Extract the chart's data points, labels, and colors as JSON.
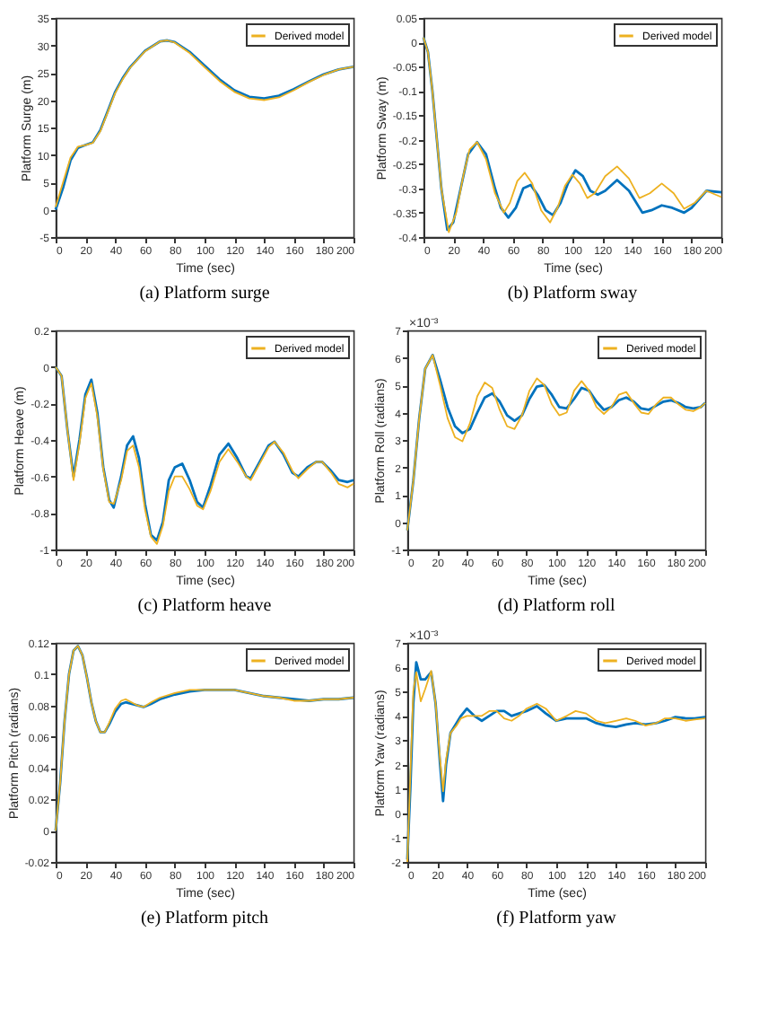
{
  "chart_data": [
    {
      "type": "line",
      "title": "(a) Platform surge",
      "xlabel": "Time (sec)",
      "ylabel": "Platform Surge (m)",
      "xlim": [
        0,
        200
      ],
      "xticks": [
        0,
        20,
        40,
        60,
        80,
        100,
        120,
        140,
        160,
        180,
        200
      ],
      "ylim": [
        -5,
        35
      ],
      "yticks": [
        -5,
        0,
        5,
        10,
        15,
        20,
        25,
        30,
        35
      ],
      "grid": false,
      "legend": "top right",
      "series": [
        {
          "color": "#0072bd",
          "x": [
            0,
            5,
            10,
            15,
            20,
            25,
            30,
            35,
            40,
            45,
            50,
            60,
            70,
            75,
            80,
            90,
            100,
            110,
            120,
            130,
            140,
            150,
            160,
            170,
            180,
            190,
            200
          ],
          "values": [
            0,
            4,
            9,
            11.3,
            11.8,
            12.3,
            14.5,
            18,
            21.5,
            24,
            26,
            29,
            30.7,
            30.9,
            30.6,
            28.8,
            26.3,
            23.8,
            21.8,
            20.6,
            20.3,
            20.8,
            22,
            23.4,
            24.7,
            25.6,
            26.1
          ]
        },
        {
          "name": "Derived model",
          "color": "#edb120",
          "x": [
            0,
            5,
            10,
            15,
            20,
            25,
            30,
            35,
            40,
            45,
            50,
            60,
            70,
            75,
            80,
            90,
            100,
            110,
            120,
            130,
            140,
            150,
            160,
            170,
            180,
            190,
            200
          ],
          "values": [
            0.5,
            5,
            9.5,
            11.5,
            11.8,
            12.2,
            14.3,
            17.8,
            21.3,
            23.8,
            25.9,
            28.9,
            30.7,
            30.9,
            30.5,
            28.6,
            26,
            23.5,
            21.5,
            20.3,
            20,
            20.5,
            21.8,
            23.3,
            24.6,
            25.6,
            26.1
          ]
        }
      ]
    },
    {
      "type": "line",
      "title": "(b) Platform sway",
      "xlabel": "Time (sec)",
      "ylabel": "Platform Sway (m)",
      "xlim": [
        0,
        200
      ],
      "xticks": [
        0,
        20,
        40,
        60,
        80,
        100,
        120,
        140,
        160,
        180,
        200
      ],
      "ylim": [
        -0.4,
        0.05
      ],
      "yticks": [
        -0.4,
        -0.35,
        -0.3,
        -0.25,
        -0.2,
        -0.15,
        -0.1,
        -0.05,
        0,
        0.05
      ],
      "grid": false,
      "legend": "top right",
      "series": [
        {
          "color": "#0072bd",
          "x": [
            0,
            3,
            6,
            9,
            12,
            16,
            20,
            25,
            30,
            36,
            42,
            48,
            52,
            57,
            62,
            67,
            72,
            77,
            82,
            87,
            92,
            97,
            102,
            107,
            112,
            117,
            122,
            130,
            138,
            147,
            153,
            160,
            167,
            175,
            180,
            190,
            200
          ],
          "values": [
            0.01,
            -0.02,
            -0.1,
            -0.2,
            -0.3,
            -0.385,
            -0.37,
            -0.3,
            -0.23,
            -0.205,
            -0.23,
            -0.3,
            -0.34,
            -0.36,
            -0.34,
            -0.3,
            -0.293,
            -0.315,
            -0.345,
            -0.355,
            -0.33,
            -0.29,
            -0.263,
            -0.275,
            -0.305,
            -0.313,
            -0.305,
            -0.283,
            -0.305,
            -0.35,
            -0.345,
            -0.335,
            -0.34,
            -0.35,
            -0.34,
            -0.305,
            -0.308
          ]
        },
        {
          "name": "Derived model",
          "color": "#edb120",
          "x": [
            0,
            3,
            6,
            9,
            12,
            17,
            22,
            27,
            31,
            36,
            42,
            48,
            54,
            58,
            63,
            68,
            73,
            79,
            85,
            90,
            95,
            100,
            105,
            110,
            115,
            122,
            130,
            138,
            145,
            152,
            160,
            168,
            175,
            182,
            190,
            200
          ],
          "values": [
            0.01,
            -0.02,
            -0.1,
            -0.2,
            -0.3,
            -0.39,
            -0.35,
            -0.27,
            -0.22,
            -0.205,
            -0.24,
            -0.31,
            -0.35,
            -0.33,
            -0.285,
            -0.268,
            -0.29,
            -0.345,
            -0.37,
            -0.34,
            -0.295,
            -0.272,
            -0.29,
            -0.32,
            -0.31,
            -0.275,
            -0.255,
            -0.28,
            -0.32,
            -0.31,
            -0.29,
            -0.31,
            -0.342,
            -0.33,
            -0.305,
            -0.318
          ]
        }
      ]
    },
    {
      "type": "line",
      "title": "(c) Platform heave",
      "xlabel": "Time (sec)",
      "ylabel": "Platform Heave (m)",
      "xlim": [
        0,
        200
      ],
      "xticks": [
        0,
        20,
        40,
        60,
        80,
        100,
        120,
        140,
        160,
        180,
        200
      ],
      "ylim": [
        -1,
        0.2
      ],
      "yticks": [
        -1,
        -0.8,
        -0.6,
        -0.4,
        -0.2,
        0,
        0.2
      ],
      "grid": false,
      "legend": "top right",
      "series": [
        {
          "color": "#0072bd",
          "x": [
            0,
            4,
            8,
            12,
            16,
            20,
            24,
            28,
            32,
            36,
            39,
            44,
            48,
            52,
            56,
            60,
            64,
            68,
            72,
            76,
            80,
            85,
            90,
            95,
            99,
            104,
            110,
            116,
            122,
            128,
            131,
            137,
            143,
            147,
            153,
            159,
            163,
            169,
            175,
            179,
            185,
            190,
            196,
            200
          ],
          "values": [
            0,
            -0.05,
            -0.35,
            -0.6,
            -0.4,
            -0.15,
            -0.07,
            -0.25,
            -0.55,
            -0.73,
            -0.77,
            -0.6,
            -0.43,
            -0.38,
            -0.5,
            -0.75,
            -0.92,
            -0.95,
            -0.85,
            -0.62,
            -0.55,
            -0.53,
            -0.62,
            -0.74,
            -0.77,
            -0.65,
            -0.48,
            -0.42,
            -0.5,
            -0.6,
            -0.61,
            -0.52,
            -0.43,
            -0.41,
            -0.48,
            -0.58,
            -0.6,
            -0.55,
            -0.52,
            -0.52,
            -0.57,
            -0.62,
            -0.63,
            -0.62
          ]
        },
        {
          "name": "Derived model",
          "color": "#edb120",
          "x": [
            0,
            4,
            8,
            12,
            16,
            20,
            24,
            28,
            32,
            36,
            39,
            44,
            48,
            52,
            56,
            60,
            64,
            68,
            72,
            76,
            80,
            85,
            90,
            95,
            99,
            104,
            110,
            116,
            122,
            128,
            131,
            137,
            143,
            147,
            153,
            159,
            163,
            169,
            175,
            179,
            185,
            190,
            196,
            200
          ],
          "values": [
            0,
            -0.05,
            -0.35,
            -0.62,
            -0.42,
            -0.17,
            -0.09,
            -0.27,
            -0.56,
            -0.74,
            -0.75,
            -0.62,
            -0.46,
            -0.43,
            -0.55,
            -0.78,
            -0.93,
            -0.97,
            -0.87,
            -0.68,
            -0.6,
            -0.6,
            -0.67,
            -0.76,
            -0.78,
            -0.68,
            -0.52,
            -0.45,
            -0.52,
            -0.6,
            -0.62,
            -0.53,
            -0.44,
            -0.41,
            -0.47,
            -0.57,
            -0.61,
            -0.56,
            -0.52,
            -0.52,
            -0.58,
            -0.64,
            -0.66,
            -0.64
          ]
        }
      ]
    },
    {
      "type": "line",
      "title": "(d) Platform roll",
      "xlabel": "Time (sec)",
      "ylabel": "Platform Roll (radians)",
      "annotations": [
        "×10⁻³"
      ],
      "xlim": [
        0,
        200
      ],
      "xticks": [
        0,
        20,
        40,
        60,
        80,
        100,
        120,
        140,
        160,
        180,
        200
      ],
      "ylim": [
        -1,
        7
      ],
      "yticks": [
        -1,
        0,
        1,
        2,
        3,
        4,
        5,
        6,
        7
      ],
      "grid": false,
      "legend": "top right",
      "series": [
        {
          "color": "#0072bd",
          "x": [
            0,
            4,
            8,
            12,
            17,
            22,
            27,
            32,
            37,
            42,
            47,
            52,
            57,
            62,
            67,
            72,
            77,
            82,
            87,
            92,
            97,
            102,
            107,
            112,
            117,
            122,
            127,
            132,
            137,
            142,
            147,
            152,
            157,
            162,
            167,
            172,
            177,
            182,
            187,
            192,
            197,
            200
          ],
          "values": [
            -0.3,
            1.5,
            3.8,
            5.6,
            6.1,
            5.2,
            4.2,
            3.5,
            3.25,
            3.4,
            4,
            4.55,
            4.7,
            4.4,
            3.9,
            3.7,
            3.9,
            4.5,
            4.95,
            5,
            4.65,
            4.2,
            4.15,
            4.5,
            4.9,
            4.8,
            4.4,
            4.1,
            4.2,
            4.45,
            4.55,
            4.4,
            4.15,
            4.1,
            4.25,
            4.4,
            4.45,
            4.35,
            4.2,
            4.15,
            4.2,
            4.35
          ]
        },
        {
          "name": "Derived model",
          "color": "#edb120",
          "x": [
            0,
            4,
            8,
            12,
            17,
            22,
            27,
            32,
            37,
            42,
            47,
            52,
            57,
            62,
            67,
            72,
            77,
            82,
            87,
            92,
            97,
            102,
            107,
            112,
            117,
            122,
            127,
            132,
            137,
            142,
            147,
            152,
            157,
            162,
            167,
            172,
            177,
            182,
            187,
            192,
            197,
            200
          ],
          "values": [
            -0.3,
            1.5,
            3.8,
            5.6,
            6.1,
            5,
            3.8,
            3.1,
            2.95,
            3.6,
            4.6,
            5.1,
            4.9,
            4.1,
            3.5,
            3.4,
            3.9,
            4.8,
            5.25,
            5,
            4.3,
            3.9,
            4,
            4.8,
            5.15,
            4.8,
            4.2,
            3.95,
            4.2,
            4.65,
            4.75,
            4.35,
            4,
            3.95,
            4.3,
            4.55,
            4.55,
            4.3,
            4.1,
            4.05,
            4.2,
            4.35
          ]
        }
      ]
    },
    {
      "type": "line",
      "title": "(e) Platform pitch",
      "xlabel": "Time (sec)",
      "ylabel": "Platform Pitch (radians)",
      "xlim": [
        0,
        200
      ],
      "xticks": [
        0,
        20,
        40,
        60,
        80,
        100,
        120,
        140,
        160,
        180,
        200
      ],
      "ylim": [
        -0.02,
        0.12
      ],
      "yticks": [
        -0.02,
        0,
        0.02,
        0.04,
        0.06,
        0.08,
        0.1,
        0.12
      ],
      "grid": false,
      "legend": "top right",
      "series": [
        {
          "color": "#0072bd",
          "x": [
            0,
            3,
            6,
            9,
            12,
            15,
            18,
            21,
            24,
            27,
            30,
            33,
            36,
            40,
            44,
            47,
            51,
            55,
            59,
            64,
            70,
            80,
            90,
            100,
            110,
            120,
            130,
            140,
            150,
            160,
            170,
            180,
            190,
            200
          ],
          "values": [
            0,
            0.03,
            0.07,
            0.1,
            0.115,
            0.118,
            0.112,
            0.098,
            0.082,
            0.07,
            0.063,
            0.063,
            0.068,
            0.076,
            0.081,
            0.082,
            0.081,
            0.08,
            0.079,
            0.081,
            0.084,
            0.087,
            0.089,
            0.09,
            0.09,
            0.09,
            0.088,
            0.086,
            0.085,
            0.084,
            0.083,
            0.084,
            0.084,
            0.085
          ]
        },
        {
          "name": "Derived model",
          "color": "#edb120",
          "x": [
            0,
            3,
            6,
            9,
            12,
            15,
            18,
            21,
            24,
            27,
            30,
            33,
            36,
            40,
            44,
            47,
            51,
            55,
            59,
            64,
            70,
            80,
            90,
            100,
            110,
            120,
            130,
            140,
            150,
            160,
            170,
            180,
            190,
            200
          ],
          "values": [
            0,
            0.03,
            0.07,
            0.1,
            0.115,
            0.118,
            0.112,
            0.098,
            0.082,
            0.07,
            0.063,
            0.063,
            0.069,
            0.078,
            0.083,
            0.084,
            0.082,
            0.08,
            0.079,
            0.082,
            0.085,
            0.088,
            0.09,
            0.09,
            0.09,
            0.09,
            0.088,
            0.086,
            0.085,
            0.083,
            0.083,
            0.084,
            0.084,
            0.085
          ]
        }
      ]
    },
    {
      "type": "line",
      "title": "(f) Platform yaw",
      "xlabel": "Time (sec)",
      "ylabel": "Platform Yaw (radians)",
      "annotations": [
        "×10⁻³"
      ],
      "xlim": [
        0,
        200
      ],
      "xticks": [
        0,
        20,
        40,
        60,
        80,
        100,
        120,
        140,
        160,
        180,
        200
      ],
      "ylim": [
        -2,
        7
      ],
      "yticks": [
        -2,
        -1,
        0,
        1,
        2,
        3,
        4,
        5,
        6,
        7
      ],
      "grid": false,
      "legend": "top right",
      "series": [
        {
          "color": "#0072bd",
          "x": [
            0,
            2,
            4,
            6,
            9,
            12,
            16,
            19,
            22,
            24,
            26,
            29,
            33,
            36,
            40,
            45,
            50,
            55,
            60,
            65,
            70,
            75,
            80,
            87,
            93,
            100,
            107,
            113,
            120,
            127,
            133,
            140,
            147,
            153,
            160,
            167,
            173,
            180,
            187,
            193,
            200
          ],
          "values": [
            -1.9,
            1,
            4.5,
            6.2,
            5.5,
            5.5,
            5.8,
            4.5,
            2,
            0.5,
            2,
            3.3,
            3.7,
            4,
            4.3,
            4,
            3.8,
            4,
            4.2,
            4.2,
            4,
            4.1,
            4.2,
            4.4,
            4.1,
            3.8,
            3.9,
            3.9,
            3.9,
            3.7,
            3.6,
            3.55,
            3.65,
            3.7,
            3.65,
            3.7,
            3.8,
            3.95,
            3.9,
            3.9,
            3.95
          ]
        },
        {
          "name": "Derived model",
          "color": "#edb120",
          "x": [
            0,
            2,
            4,
            6,
            9,
            12,
            16,
            19,
            22,
            24,
            26,
            29,
            33,
            36,
            40,
            45,
            50,
            55,
            60,
            65,
            70,
            75,
            80,
            87,
            93,
            100,
            107,
            113,
            120,
            127,
            133,
            140,
            147,
            153,
            160,
            167,
            173,
            180,
            187,
            193,
            200
          ],
          "values": [
            -2,
            1.5,
            5,
            5.8,
            4.6,
            5.1,
            5.85,
            4.5,
            2.2,
            0.9,
            2.2,
            3.3,
            3.6,
            3.9,
            4,
            4,
            4,
            4.2,
            4.2,
            3.9,
            3.8,
            4,
            4.3,
            4.5,
            4.3,
            3.8,
            4,
            4.2,
            4.1,
            3.8,
            3.7,
            3.8,
            3.9,
            3.8,
            3.6,
            3.7,
            3.9,
            3.9,
            3.8,
            3.85,
            3.9
          ]
        }
      ]
    }
  ]
}
